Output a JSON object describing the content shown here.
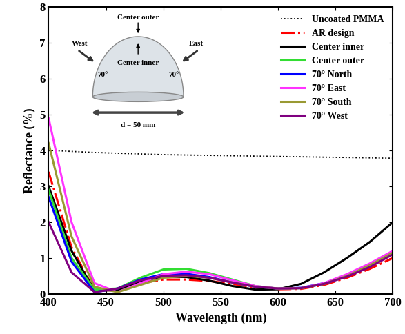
{
  "chart_data": {
    "type": "line",
    "x_label": "Wavelength (nm)",
    "y_label": "Reflectance (%)",
    "x": [
      400,
      420,
      440,
      460,
      480,
      500,
      520,
      540,
      560,
      580,
      600,
      620,
      640,
      660,
      680,
      700
    ],
    "series": [
      {
        "name": "Uncoated PMMA",
        "color": "#000000",
        "line_style": "dotted",
        "values": [
          4.0,
          3.97,
          3.94,
          3.92,
          3.9,
          3.88,
          3.87,
          3.86,
          3.85,
          3.84,
          3.83,
          3.82,
          3.81,
          3.8,
          3.79,
          3.78
        ]
      },
      {
        "name": "AR design",
        "color": "#ff0000",
        "line_style": "dashdot",
        "values": [
          3.4,
          1.3,
          0.1,
          0.1,
          0.3,
          0.4,
          0.4,
          0.36,
          0.28,
          0.18,
          0.13,
          0.14,
          0.25,
          0.45,
          0.7,
          1.0
        ]
      },
      {
        "name": "Center inner",
        "color": "#000000",
        "line_style": "solid",
        "values": [
          3.0,
          1.2,
          0.1,
          0.1,
          0.35,
          0.48,
          0.47,
          0.37,
          0.22,
          0.12,
          0.13,
          0.28,
          0.6,
          1.0,
          1.45,
          2.0
        ]
      },
      {
        "name": "Center outer",
        "color": "#33dd33",
        "line_style": "solid",
        "values": [
          2.9,
          1.0,
          0.12,
          0.15,
          0.45,
          0.68,
          0.7,
          0.58,
          0.4,
          0.22,
          0.15,
          0.16,
          0.28,
          0.5,
          0.8,
          1.15
        ]
      },
      {
        "name": "70° North",
        "color": "#0000ff",
        "line_style": "solid",
        "values": [
          2.7,
          0.9,
          0.05,
          0.15,
          0.4,
          0.55,
          0.56,
          0.47,
          0.32,
          0.2,
          0.15,
          0.17,
          0.3,
          0.52,
          0.8,
          1.15
        ]
      },
      {
        "name": "70° East",
        "color": "#ff33ff",
        "line_style": "solid",
        "values": [
          4.9,
          2.0,
          0.3,
          0.05,
          0.3,
          0.55,
          0.62,
          0.55,
          0.38,
          0.22,
          0.15,
          0.16,
          0.3,
          0.55,
          0.85,
          1.2
        ]
      },
      {
        "name": "70° South",
        "color": "#999933",
        "line_style": "solid",
        "values": [
          4.2,
          1.6,
          0.2,
          0.05,
          0.25,
          0.45,
          0.5,
          0.45,
          0.32,
          0.2,
          0.15,
          0.16,
          0.28,
          0.5,
          0.8,
          1.15
        ]
      },
      {
        "name": "70° West",
        "color": "#800080",
        "line_style": "solid",
        "values": [
          2.0,
          0.6,
          0.05,
          0.15,
          0.38,
          0.5,
          0.52,
          0.45,
          0.32,
          0.2,
          0.15,
          0.16,
          0.28,
          0.48,
          0.75,
          1.1
        ]
      }
    ],
    "xlim": [
      400,
      700
    ],
    "xticks": [
      400,
      450,
      500,
      550,
      600,
      650,
      700
    ],
    "ylim": [
      0,
      8
    ],
    "yticks": [
      0,
      1,
      2,
      3,
      4,
      5,
      6,
      7,
      8
    ],
    "grid": false,
    "legend": "upper right",
    "annotations": [
      "Center outer",
      "Center inner",
      "West",
      "East",
      "70°",
      "70°",
      "d = 50 mm"
    ]
  }
}
